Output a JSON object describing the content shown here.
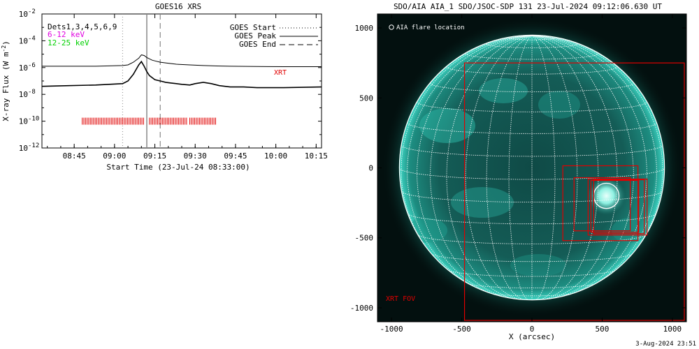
{
  "colors": {
    "xrt": "#e00000",
    "magenta": "#e000e0",
    "green": "#00d000",
    "sun": "#1fa99a",
    "grid": "#ffffff"
  },
  "chart_data": [
    {
      "type": "line",
      "title": "GOES16 XRS",
      "xlabel": "Start Time (23-Jul-24 08:33:00)",
      "ylabel": "X-ray Flux (W m^-2)",
      "ylabel_main": "X-ray Flux (W m",
      "ylabel_exp": "-2",
      "ylabel_end": ")",
      "y_scale": "log",
      "ylim_exp": [
        -12,
        -2
      ],
      "xlim": [
        "08:33",
        "10:17"
      ],
      "x_ticks": [
        "08:45",
        "09:00",
        "09:15",
        "09:30",
        "09:45",
        "10:00",
        "10:15"
      ],
      "y_ticks": [
        "10",
        "10",
        "10",
        "10",
        "10",
        "10"
      ],
      "y_tick_exps": [
        "-2",
        "-4",
        "-6",
        "-8",
        "-10",
        "-12"
      ],
      "y_tick_values": [
        -2,
        -4,
        -6,
        -8,
        -10,
        -12
      ],
      "annotation_dets": "Dets1,3,4,5,6,9",
      "annotation_bands": [
        "6-12 keV",
        "12-25 keV"
      ],
      "legend": [
        {
          "label": "GOES Start",
          "style": "dotted"
        },
        {
          "label": "GOES Peak",
          "style": "solid"
        },
        {
          "label": "GOES End",
          "style": "dashed"
        }
      ],
      "legend_placement": "top-right",
      "xrt_label": "XRT",
      "event_times": {
        "start": "09:03",
        "peak": "09:12",
        "end": "09:17"
      },
      "series": [
        {
          "style": "solid",
          "x_min": [
            0,
            10,
            20,
            30,
            32,
            34,
            36,
            37,
            38,
            39,
            40,
            41,
            42,
            44,
            46,
            50,
            55,
            60,
            65,
            70,
            80,
            90,
            104
          ],
          "log_flux": [
            -5.9,
            -5.9,
            -5.9,
            -5.85,
            -5.8,
            -5.6,
            -5.3,
            -5.05,
            -5.1,
            -5.25,
            -5.35,
            -5.45,
            -5.5,
            -5.6,
            -5.65,
            -5.75,
            -5.8,
            -5.85,
            -5.88,
            -5.9,
            -5.92,
            -5.93,
            -5.93
          ]
        },
        {
          "style": "solid",
          "x_min": [
            0,
            10,
            20,
            30,
            32,
            34,
            36,
            37,
            38,
            39,
            40,
            42,
            44,
            46,
            48,
            50,
            52,
            55,
            57,
            60,
            63,
            66,
            70,
            75,
            80,
            90,
            104
          ],
          "log_flux": [
            -7.4,
            -7.35,
            -7.3,
            -7.2,
            -7.0,
            -6.5,
            -5.8,
            -5.55,
            -5.9,
            -6.3,
            -6.6,
            -6.9,
            -7.0,
            -7.1,
            -7.15,
            -7.2,
            -7.25,
            -7.3,
            -7.2,
            -7.1,
            -7.2,
            -7.35,
            -7.45,
            -7.45,
            -7.5,
            -7.5,
            -7.45
          ]
        }
      ],
      "xrt_bars": [
        {
          "start": "08:48",
          "end": "09:11"
        },
        {
          "start": "09:13",
          "end": "09:27"
        },
        {
          "start": "09:28",
          "end": "09:38"
        }
      ]
    },
    {
      "type": "scatter",
      "title": "SDO/AIA AIA_1 SDO/JSOC-SDP 131 23-Jul-2024 09:12:06.630 UT",
      "xlabel": "X (arcsec)",
      "ylabel": "",
      "xlim": [
        -1100,
        1100
      ],
      "ylim": [
        -1100,
        1100
      ],
      "x_ticks": [
        "-1000",
        "-500",
        "0",
        "500",
        "1000"
      ],
      "y_ticks": [
        "1000",
        "500",
        "0",
        "-500",
        "-1000"
      ],
      "tick_values": [
        -1000,
        -500,
        0,
        500,
        1000
      ],
      "legend_label": "AIA flare location",
      "xrt_fov_label": "XRT FOV",
      "solar_radius_arcsec": 945,
      "flare_location": {
        "x": 530,
        "y": -200,
        "r": 90
      },
      "xrt_fov_boxes": [
        {
          "x0": -480,
          "y0": -1090,
          "x1": 1085,
          "y1": 750
        },
        {
          "x0": 220,
          "y0": -520,
          "x1": 755,
          "y1": 15
        },
        {
          "x0": 300,
          "y0": -450,
          "x1": 700,
          "y1": -70
        },
        {
          "x0": 400,
          "y0": -480,
          "x1": 820,
          "y1": -80
        },
        {
          "x0": 420,
          "y0": -460,
          "x1": 760,
          "y1": -90
        },
        {
          "x0": 440,
          "y0": -470,
          "x1": 800,
          "y1": -85
        }
      ]
    }
  ],
  "footer_timestamp": "3-Aug-2024 23:51"
}
